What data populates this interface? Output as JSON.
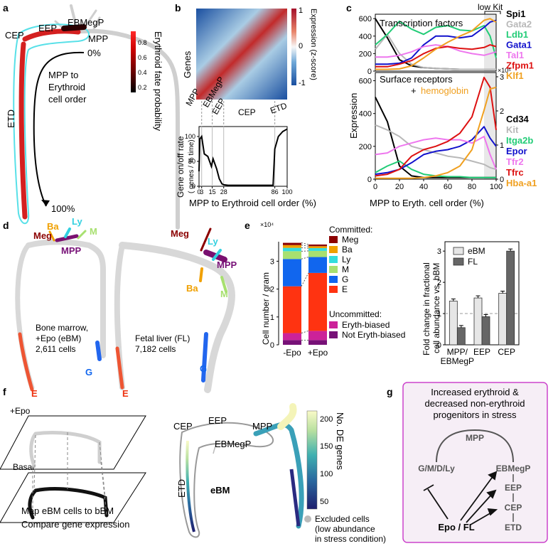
{
  "panels": {
    "a": {
      "label": "a",
      "stages": [
        "CEP",
        "EEP",
        "EBMegP",
        "MPP",
        "ETD"
      ],
      "order_title": [
        "MPP to",
        "Erythroid",
        "cell order"
      ],
      "start_pct": "0%",
      "end_pct": "100%",
      "colorbar_title": "Erythroid fate probability",
      "colorbar_ticks": [
        "0.8",
        "0.6",
        "0.4",
        "0.2"
      ]
    },
    "b": {
      "label": "b",
      "heatmap_ylabel": "Genes",
      "colorbar_title": "Expression (z-score)",
      "colorbar_ticks": [
        "1",
        "0",
        "-1"
      ],
      "stage_labels": [
        "MPP",
        "EBMegP",
        "EEP",
        "CEP",
        "ETD"
      ],
      "ylabel_line1": "Gene on/off rate",
      "ylabel_line2": "( genes / % time)",
      "xlabel": "MPP to Erythroid cell order (%)"
    },
    "c": {
      "label": "c",
      "low_kit": "low Kit",
      "top_title": "Transcription factors",
      "bottom_title_1": "Surface receptors",
      "bottom_title_2": "+",
      "bottom_title_3": "hemoglobin",
      "ylabel": "Expression",
      "xlabel": "MPP to Eryth. cell order (%)",
      "right_multiplier": "×10⁵",
      "tf_legend": [
        {
          "name": "Spi1",
          "color": "#000000"
        },
        {
          "name": "Gata2",
          "color": "#b8b8b8"
        },
        {
          "name": "Ldb1",
          "color": "#22cc77"
        },
        {
          "name": "Gata1",
          "color": "#1111cc"
        },
        {
          "name": "Tal1",
          "color": "#ee77ee"
        },
        {
          "name": "Zfpm1",
          "color": "#dd1111"
        },
        {
          "name": "Klf1",
          "color": "#f0a020"
        }
      ],
      "sr_legend": [
        {
          "name": "Cd34",
          "color": "#000000"
        },
        {
          "name": "Kit",
          "color": "#b8b8b8"
        },
        {
          "name": "Itga2b",
          "color": "#22cc77"
        },
        {
          "name": "Epor",
          "color": "#1111cc"
        },
        {
          "name": "Tfr2",
          "color": "#ee77ee"
        },
        {
          "name": "Tfrc",
          "color": "#dd1111"
        },
        {
          "name": "Hba-a1",
          "color": "#f0a020"
        }
      ]
    },
    "d": {
      "label": "d",
      "bm_lineages": [
        "Ba",
        "Ly",
        "M",
        "Meg",
        "MPP",
        "E",
        "G"
      ],
      "fl_lineages": [
        "Meg",
        "Ly",
        "MPP",
        "Ba",
        "M",
        "G",
        "E"
      ],
      "bm_caption": [
        "Bone marrow,",
        "+Epo (eBM)",
        "2,611 cells"
      ],
      "fl_caption": [
        "Fetal liver (FL)",
        "7,182 cells"
      ]
    },
    "e": {
      "label": "e",
      "ylabel": "Cell number / gram",
      "y_multiplier": "×10⁴",
      "committed_title": "Committed:",
      "uncommitted_title": "Uncommitted:",
      "legend": [
        {
          "name": "Meg",
          "color": "#8b0000"
        },
        {
          "name": "Ba",
          "color": "#f0a000"
        },
        {
          "name": "Ly",
          "color": "#33dddd"
        },
        {
          "name": "M",
          "color": "#a8e070"
        },
        {
          "name": "G",
          "color": "#1166ee"
        },
        {
          "name": "E",
          "color": "#ff3311"
        },
        {
          "name": "Eryth-biased",
          "color": "#cc2299"
        },
        {
          "name": "Not Eryth-biased",
          "color": "#771177"
        }
      ],
      "fold_ylabel_1": "Fold change in fractional",
      "fold_ylabel_2": "cell abundance vs. bBM",
      "fold_legend": [
        "eBM",
        "FL"
      ]
    },
    "f": {
      "label": "f",
      "plane_top": "+Epo",
      "plane_bottom": "Basal",
      "caption": [
        "Map eBM cells to bBM",
        "Compare gene expression"
      ],
      "stages": [
        "CEP",
        "EEP",
        "MPP",
        "EBMegP",
        "ETD"
      ],
      "center_label": "eBM",
      "colorbar_title": "No. DE genes",
      "colorbar_ticks": [
        "200",
        "150",
        "100",
        "50"
      ],
      "excluded": [
        "Excluded cells",
        "(low abundance",
        "in stress condition)"
      ]
    },
    "g": {
      "label": "g",
      "title": [
        "Increased erythroid &",
        "decreased non-erythroid",
        "progenitors in stress"
      ],
      "nodes": [
        "MPP",
        "G/M/D/Ly",
        "EBMegP",
        "EEP",
        "CEP",
        "ETD",
        "Epo / FL"
      ],
      "frame_color": "#cc44cc"
    }
  },
  "chart_data": [
    {
      "type": "line",
      "panel": "b",
      "xlabel": "MPP to Erythroid cell order (%)",
      "ylabel": "Gene on/off rate ( genes / % time)",
      "x_ticks": [
        0,
        3,
        15,
        28,
        86,
        100
      ],
      "y_ticks": [
        0,
        50,
        100
      ],
      "ylim": [
        0,
        120
      ],
      "xlim": [
        0,
        100
      ],
      "series": [
        {
          "x": [
            0,
            1,
            3,
            6,
            10,
            14,
            16,
            20,
            23,
            26,
            28,
            33,
            40,
            50,
            60,
            70,
            78,
            84,
            86,
            90,
            95,
            100
          ],
          "y": [
            30,
            95,
            100,
            65,
            60,
            40,
            55,
            35,
            15,
            5,
            3,
            2,
            2,
            2,
            2,
            2,
            2,
            2,
            75,
            100,
            110,
            115
          ]
        }
      ]
    },
    {
      "type": "line",
      "panel": "c-top",
      "title": "Transcription factors",
      "xlim": [
        0,
        100
      ],
      "ylim": [
        0,
        650
      ],
      "y_ticks": [
        0,
        200,
        400,
        600
      ],
      "x": [
        0,
        10,
        20,
        30,
        40,
        50,
        60,
        70,
        80,
        90,
        95,
        100
      ],
      "series": [
        {
          "name": "Spi1",
          "values": [
            600,
            380,
            130,
            60,
            40,
            30,
            25,
            20,
            20,
            20,
            20,
            20
          ]
        },
        {
          "name": "Gata2",
          "values": [
            250,
            420,
            200,
            80,
            40,
            30,
            25,
            20,
            20,
            20,
            20,
            20
          ]
        },
        {
          "name": "Ldb1",
          "values": [
            300,
            420,
            570,
            480,
            420,
            500,
            520,
            470,
            460,
            520,
            400,
            150
          ]
        },
        {
          "name": "Gata1",
          "values": [
            80,
            80,
            90,
            150,
            300,
            400,
            400,
            380,
            400,
            500,
            560,
            580
          ]
        },
        {
          "name": "Tal1",
          "values": [
            160,
            160,
            180,
            220,
            280,
            300,
            280,
            230,
            200,
            180,
            200,
            220
          ]
        },
        {
          "name": "Zfpm1",
          "values": [
            50,
            50,
            80,
            120,
            200,
            260,
            280,
            260,
            250,
            270,
            300,
            280
          ]
        },
        {
          "name": "Klf1",
          "values": [
            20,
            20,
            25,
            60,
            150,
            250,
            330,
            400,
            460,
            580,
            600,
            560
          ]
        }
      ]
    },
    {
      "type": "line",
      "panel": "c-bottom",
      "title": "Surface receptors + hemoglobin",
      "xlim": [
        0,
        100
      ],
      "ylim": [
        0,
        650
      ],
      "y_ticks": [
        0,
        200,
        400,
        600
      ],
      "y2_ticks": [
        0,
        1,
        2,
        3
      ],
      "x": [
        0,
        10,
        20,
        30,
        40,
        50,
        60,
        70,
        80,
        90,
        95,
        100
      ],
      "series": [
        {
          "name": "Cd34",
          "values": [
            500,
            350,
            80,
            20,
            10,
            10,
            10,
            10,
            10,
            10,
            10,
            10
          ]
        },
        {
          "name": "Kit",
          "values": [
            330,
            300,
            260,
            200,
            180,
            160,
            140,
            130,
            110,
            90,
            70,
            60
          ]
        },
        {
          "name": "Itga2b",
          "values": [
            40,
            80,
            110,
            60,
            30,
            20,
            15,
            15,
            10,
            10,
            10,
            10
          ]
        },
        {
          "name": "Epor",
          "values": [
            30,
            40,
            60,
            100,
            150,
            170,
            180,
            200,
            240,
            320,
            250,
            200
          ]
        },
        {
          "name": "Tfr2",
          "values": [
            150,
            160,
            200,
            220,
            240,
            250,
            240,
            240,
            220,
            260,
            150,
            60
          ]
        },
        {
          "name": "Tfrc",
          "values": [
            20,
            30,
            60,
            140,
            180,
            200,
            230,
            280,
            380,
            620,
            560,
            300
          ]
        },
        {
          "name": "Hba-a1",
          "values": [
            5,
            5,
            5,
            5,
            10,
            20,
            40,
            80,
            180,
            420,
            550,
            560
          ]
        }
      ]
    },
    {
      "type": "bar",
      "panel": "e-left",
      "stacked": true,
      "categories": [
        "-Epo",
        "+Epo"
      ],
      "ylabel": "Cell number / gram",
      "ylim": [
        0,
        3.7
      ],
      "y_ticks": [
        0,
        1,
        2,
        3
      ],
      "series": [
        {
          "name": "Not Eryth-biased",
          "values": [
            0.17,
            0.17
          ]
        },
        {
          "name": "Eryth-biased",
          "values": [
            0.25,
            0.33
          ]
        },
        {
          "name": "E",
          "values": [
            1.68,
            2.08
          ]
        },
        {
          "name": "G",
          "values": [
            0.98,
            0.57
          ]
        },
        {
          "name": "M",
          "values": [
            0.28,
            0.22
          ]
        },
        {
          "name": "Ly",
          "values": [
            0.12,
            0.1
          ]
        },
        {
          "name": "Ba",
          "values": [
            0.1,
            0.07
          ]
        },
        {
          "name": "Meg",
          "values": [
            0.08,
            0.06
          ]
        }
      ]
    },
    {
      "type": "bar",
      "panel": "e-right",
      "categories": [
        "MPP/ EBMegP",
        "EEP",
        "CEP"
      ],
      "ylabel": "Fold change in fractional cell abundance vs. bBM",
      "ylim": [
        0,
        3.3
      ],
      "y_ticks": [
        0,
        1,
        2,
        3
      ],
      "series": [
        {
          "name": "eBM",
          "values": [
            1.4,
            1.5,
            1.65
          ]
        },
        {
          "name": "FL",
          "values": [
            0.55,
            0.9,
            3.0
          ]
        }
      ]
    }
  ]
}
